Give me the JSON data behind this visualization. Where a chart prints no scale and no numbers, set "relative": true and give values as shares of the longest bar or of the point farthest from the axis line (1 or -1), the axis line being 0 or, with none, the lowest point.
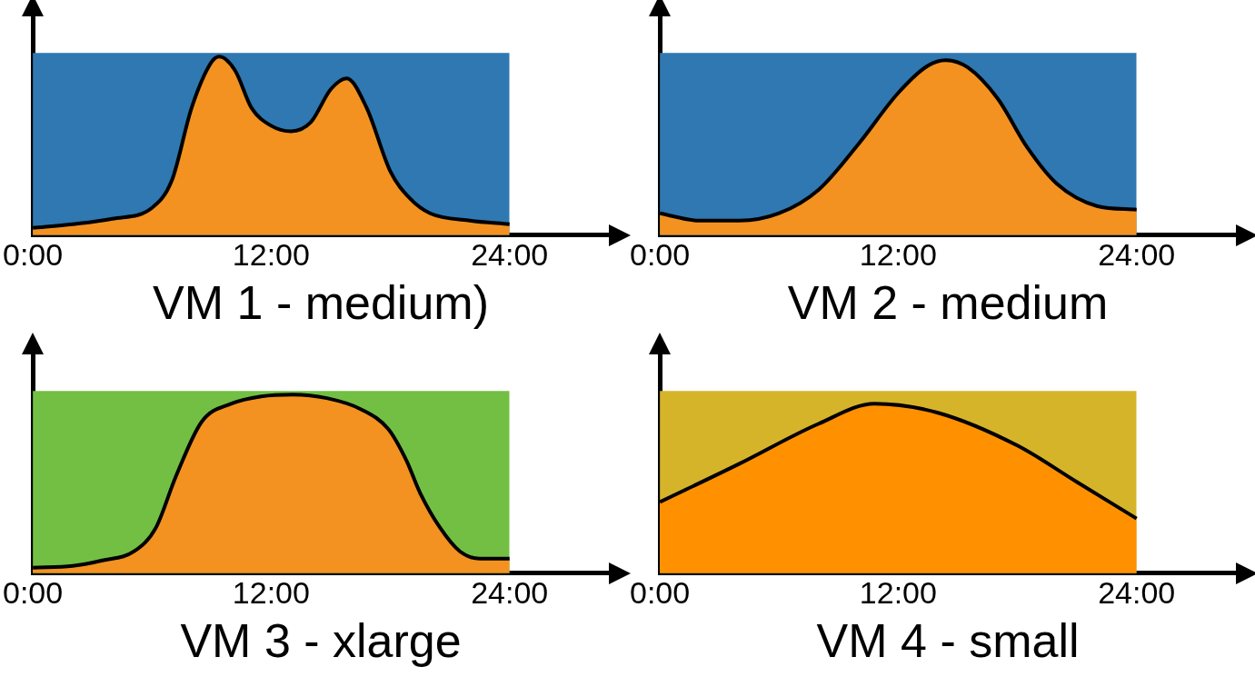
{
  "chart_data": [
    {
      "type": "area",
      "relative": true,
      "xlabel": "VM 1 - medium)",
      "xlim": [
        0,
        29
      ],
      "xticks": [
        {
          "value": 0,
          "label": "0:00"
        },
        {
          "value": 12,
          "label": "12:00"
        },
        {
          "value": 24,
          "label": "24:00"
        }
      ],
      "legend": false,
      "grid": false,
      "series": [
        {
          "color": "#2f78b1",
          "x": [
            0,
            24
          ],
          "values": [
            1,
            1
          ]
        },
        {
          "color": "#f39220",
          "x": [
            0,
            2,
            4,
            6,
            7,
            8,
            9,
            9.4,
            10.2,
            11,
            12,
            13,
            14,
            15,
            15.8,
            16.8,
            18,
            19,
            20,
            22,
            24
          ],
          "values": [
            0.04,
            0.06,
            0.09,
            0.15,
            0.3,
            0.7,
            0.95,
            0.98,
            0.9,
            0.7,
            0.6,
            0.57,
            0.62,
            0.8,
            0.86,
            0.7,
            0.35,
            0.2,
            0.12,
            0.08,
            0.06
          ]
        }
      ]
    },
    {
      "type": "area",
      "relative": true,
      "xlabel": "VM 2 - medium",
      "xlim": [
        0,
        29
      ],
      "xticks": [
        {
          "value": 0,
          "label": "0:00"
        },
        {
          "value": 12,
          "label": "12:00"
        },
        {
          "value": 24,
          "label": "24:00"
        }
      ],
      "legend": false,
      "grid": false,
      "series": [
        {
          "color": "#2f78b1",
          "x": [
            0,
            24
          ],
          "values": [
            1,
            1
          ]
        },
        {
          "color": "#f39220",
          "x": [
            0,
            2,
            4,
            6,
            8,
            10,
            12,
            13.5,
            14.4,
            15.5,
            17,
            18.5,
            20,
            22,
            24
          ],
          "values": [
            0.12,
            0.08,
            0.08,
            0.12,
            0.25,
            0.5,
            0.78,
            0.93,
            0.96,
            0.92,
            0.75,
            0.48,
            0.28,
            0.16,
            0.14
          ]
        }
      ]
    },
    {
      "type": "area",
      "relative": true,
      "xlabel": "VM 3 - xlarge",
      "xlim": [
        0,
        29
      ],
      "xticks": [
        {
          "value": 0,
          "label": "0:00"
        },
        {
          "value": 12,
          "label": "12:00"
        },
        {
          "value": 24,
          "label": "24:00"
        }
      ],
      "legend": false,
      "grid": false,
      "series": [
        {
          "color": "#72bf44",
          "x": [
            0,
            24
          ],
          "values": [
            1,
            1
          ]
        },
        {
          "color": "#f39220",
          "x": [
            0,
            2,
            3.5,
            5.1,
            6.2,
            7.2,
            8.5,
            10,
            11.5,
            13.1,
            14.8,
            16.5,
            17.9,
            18.8,
            19.5,
            20.5,
            21.5,
            22.5,
            24
          ],
          "values": [
            0.03,
            0.04,
            0.07,
            0.12,
            0.25,
            0.53,
            0.83,
            0.93,
            0.97,
            0.98,
            0.96,
            0.9,
            0.79,
            0.62,
            0.44,
            0.25,
            0.12,
            0.08,
            0.08
          ]
        }
      ]
    },
    {
      "type": "area",
      "relative": true,
      "xlabel": "VM 4 - small",
      "xlim": [
        0,
        29
      ],
      "xticks": [
        {
          "value": 0,
          "label": "0:00"
        },
        {
          "value": 12,
          "label": "12:00"
        },
        {
          "value": 24,
          "label": "24:00"
        }
      ],
      "legend": false,
      "grid": false,
      "series": [
        {
          "color": "#d6b42a",
          "x": [
            0,
            24
          ],
          "values": [
            1,
            1
          ]
        },
        {
          "color": "#ff9100",
          "x": [
            0,
            4,
            8,
            10.8,
            14,
            18,
            21,
            24
          ],
          "values": [
            0.39,
            0.6,
            0.82,
            0.93,
            0.88,
            0.7,
            0.5,
            0.3
          ]
        }
      ]
    }
  ]
}
